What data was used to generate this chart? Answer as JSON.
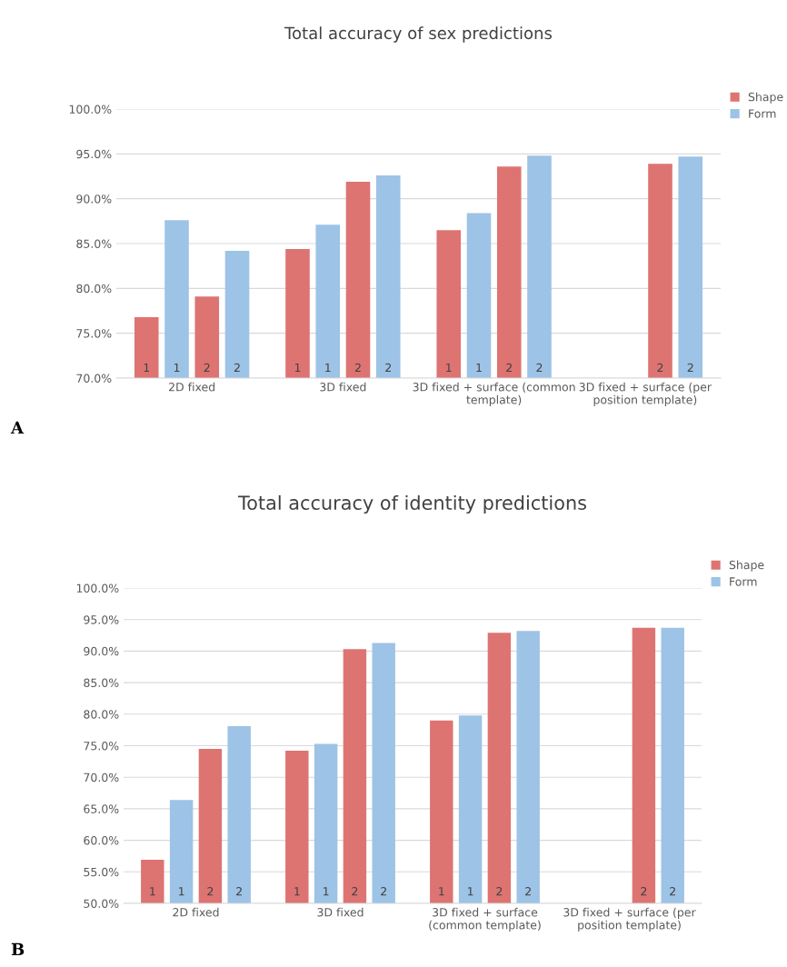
{
  "chart_data": [
    {
      "type": "bar",
      "title": "Total accuracy of sex predictions",
      "categories": [
        "2D fixed",
        "3D fixed",
        "3D fixed + surface (common\ntemplate)",
        "3D fixed + surface (per\nposition template)"
      ],
      "series": [
        {
          "name": "Shape",
          "color": "#dd7472",
          "values": [
            76.8,
            84.4,
            86.5,
            null
          ]
        },
        {
          "name": "Form",
          "color": "#9dc3e6",
          "values": [
            87.6,
            87.1,
            88.4,
            null
          ]
        },
        {
          "color": "#dd7472",
          "values": [
            79.1,
            91.9,
            93.6,
            93.9
          ]
        },
        {
          "color": "#9dc3e6",
          "values": [
            84.2,
            92.6,
            94.8,
            94.7
          ]
        }
      ],
      "ylim": [
        70,
        100
      ],
      "yticks": [
        {
          "value": 70,
          "label": "70.0%"
        },
        {
          "value": 75,
          "label": "75.0%"
        },
        {
          "value": 80,
          "label": "80.0%"
        },
        {
          "value": 85,
          "label": "85.0%"
        },
        {
          "value": 90,
          "label": "90.0%"
        },
        {
          "value": 95,
          "label": "95.0%"
        },
        {
          "value": 100,
          "label": "100.0%"
        }
      ],
      "grid": "y",
      "legend": "top right",
      "annotations": [
        "A",
        "1",
        "1",
        "2",
        "2",
        "1",
        "1",
        "2",
        "2",
        "1",
        "1",
        "2",
        "2",
        "2",
        "2"
      ]
    },
    {
      "type": "bar",
      "title": "Total accuracy of identity predictions",
      "categories": [
        "2D fixed",
        "3D fixed",
        "3D fixed + surface\n(common template)",
        "3D fixed + surface (per\nposition template)"
      ],
      "series": [
        {
          "name": "Shape",
          "color": "#dd7472",
          "values": [
            56.9,
            74.2,
            79.0,
            null
          ]
        },
        {
          "name": "Form",
          "color": "#9dc3e6",
          "values": [
            66.4,
            75.3,
            79.8,
            null
          ]
        },
        {
          "color": "#dd7472",
          "values": [
            74.5,
            90.3,
            92.9,
            93.7
          ]
        },
        {
          "color": "#9dc3e6",
          "values": [
            78.1,
            91.3,
            93.2,
            93.7
          ]
        }
      ],
      "ylim": [
        50,
        100
      ],
      "yticks": [
        {
          "value": 50,
          "label": "50.0%"
        },
        {
          "value": 55,
          "label": "55.0%"
        },
        {
          "value": 60,
          "label": "60.0%"
        },
        {
          "value": 65,
          "label": "65.0%"
        },
        {
          "value": 70,
          "label": "70.0%"
        },
        {
          "value": 75,
          "label": "75.0%"
        },
        {
          "value": 80,
          "label": "80.0%"
        },
        {
          "value": 85,
          "label": "85.0%"
        },
        {
          "value": 90,
          "label": "90.0%"
        },
        {
          "value": 95,
          "label": "95.0%"
        },
        {
          "value": 100,
          "label": "100.0%"
        }
      ],
      "grid": "y",
      "legend": "top right",
      "annotations": [
        "B",
        "1",
        "1",
        "2",
        "2",
        "1",
        "1",
        "2",
        "2",
        "1",
        "1",
        "2",
        "2",
        "2",
        "2"
      ]
    }
  ]
}
